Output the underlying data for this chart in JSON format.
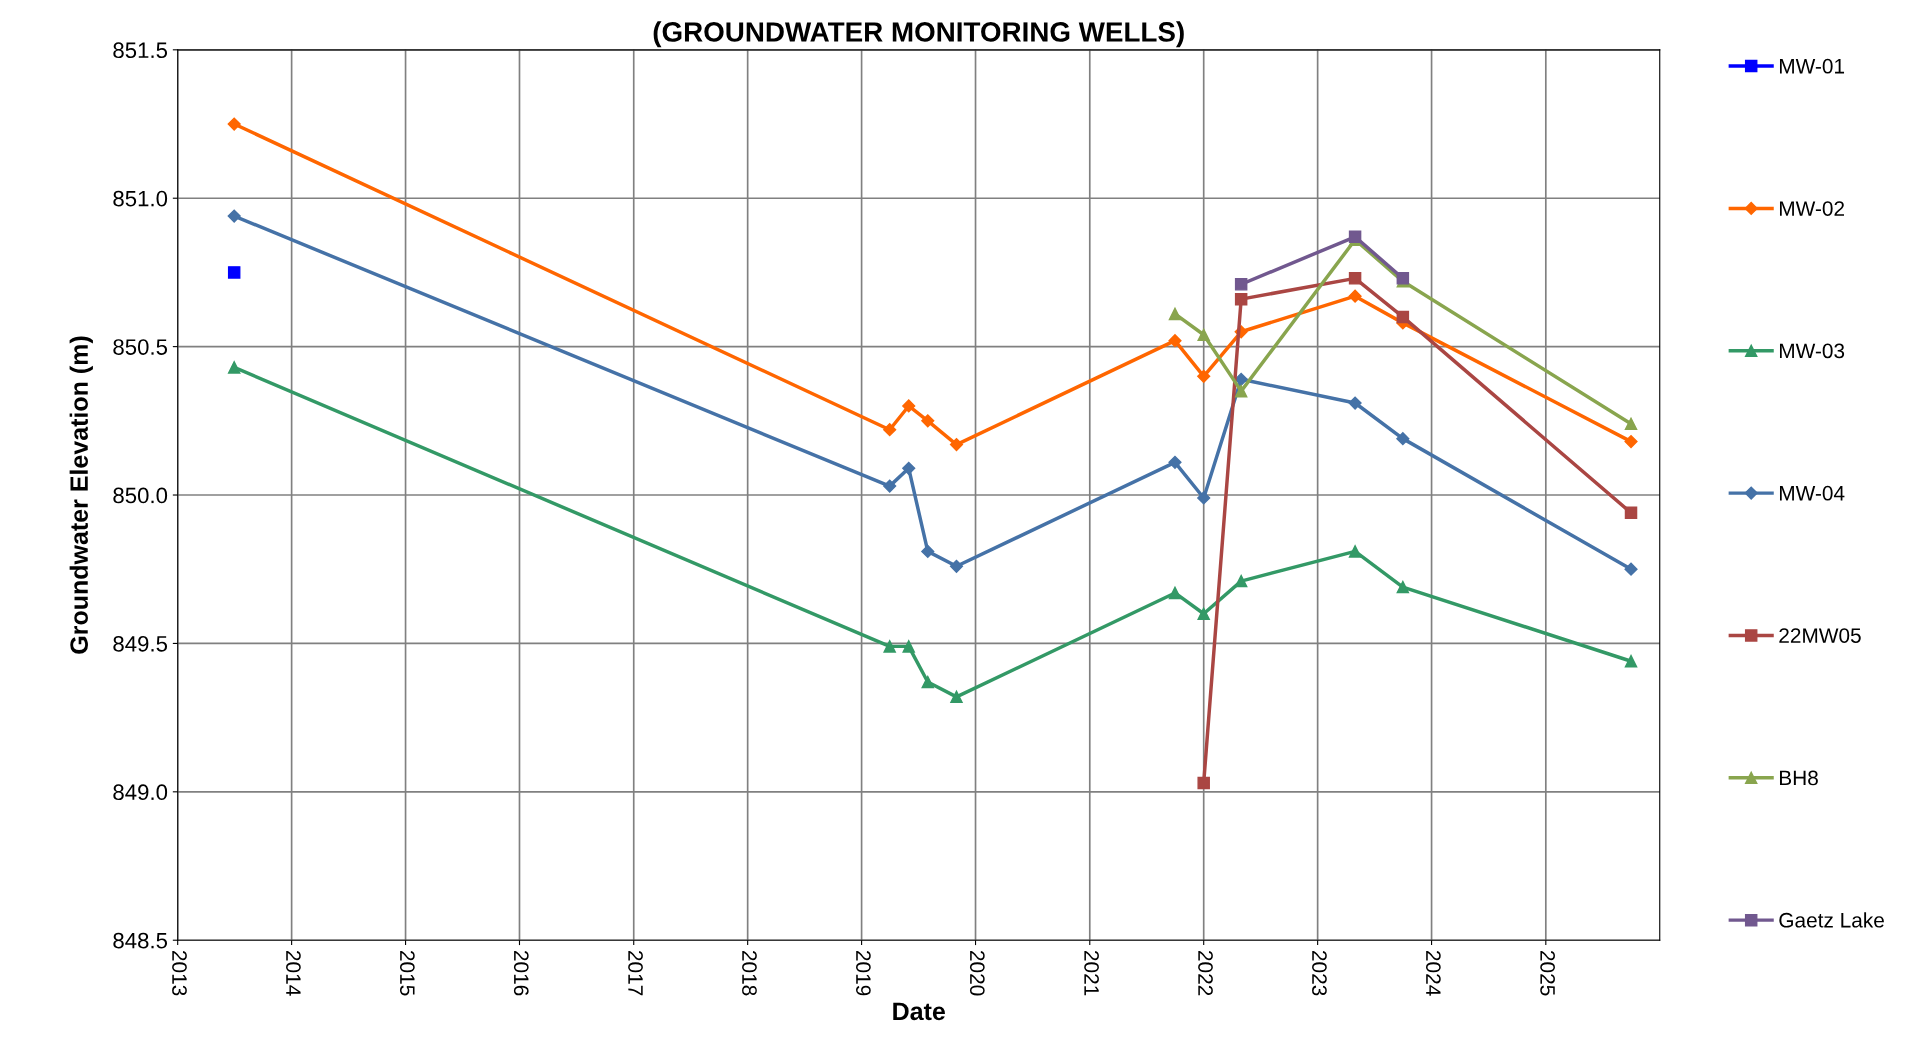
{
  "chart_data": {
    "type": "line",
    "title": "(GROUNDWATER MONITORING WELLS)",
    "xlabel": "Date",
    "ylabel": "Groundwater Elevation (m)",
    "xlim": [
      "2013",
      "2026"
    ],
    "xticks": [
      "2013",
      "2014",
      "2015",
      "2016",
      "2017",
      "2018",
      "2019",
      "2020",
      "2021",
      "2022",
      "2023",
      "2024",
      "2025"
    ],
    "ylim": [
      848.5,
      851.5
    ],
    "yticks": [
      848.5,
      {
        "value": 849,
        "label": "849.0"
      },
      849.5,
      {
        "value": 850,
        "label": "850.0"
      },
      850.5,
      {
        "value": 851,
        "label": "851.0"
      },
      851.5
    ],
    "grid": true,
    "legend": "right",
    "line_style": "solid",
    "series": [
      {
        "name": "MW-01",
        "color": "#0000ff",
        "marker": "square",
        "x": [
          "2013-07"
        ],
        "values": [
          850.75
        ]
      },
      {
        "name": "MW-02",
        "color": "#ff6600",
        "marker": "diamond",
        "x": [
          "2013-07",
          "2019-04",
          "2019-06",
          "2019-08",
          "2019-11",
          "2021-10",
          "2022-01",
          "2022-05",
          "2023-05",
          "2023-10",
          "2025-10"
        ],
        "values": [
          851.25,
          850.22,
          850.3,
          850.25,
          850.17,
          850.52,
          850.4,
          850.55,
          850.67,
          850.58,
          850.18
        ]
      },
      {
        "name": "MW-03",
        "color": "#339966",
        "marker": "triangle",
        "x": [
          "2013-07",
          "2019-04",
          "2019-06",
          "2019-08",
          "2019-11",
          "2021-10",
          "2022-01",
          "2022-05",
          "2023-05",
          "2023-10",
          "2025-10"
        ],
        "values": [
          850.43,
          849.49,
          849.49,
          849.37,
          849.32,
          849.67,
          849.6,
          849.71,
          849.81,
          849.69,
          849.44
        ]
      },
      {
        "name": "MW-04",
        "color": "#4572a7",
        "marker": "diamond",
        "x": [
          "2013-07",
          "2019-04",
          "2019-06",
          "2019-08",
          "2019-11",
          "2021-10",
          "2022-01",
          "2022-05",
          "2023-05",
          "2023-10",
          "2025-10"
        ],
        "values": [
          850.94,
          850.03,
          850.09,
          849.81,
          849.76,
          850.11,
          849.99,
          850.39,
          850.31,
          850.19,
          849.75
        ]
      },
      {
        "name": "22MW05",
        "color": "#aa4643",
        "marker": "square",
        "x": [
          "2022-01",
          "2022-05",
          "2023-05",
          "2023-10",
          "2025-10"
        ],
        "values": [
          849.03,
          850.66,
          850.73,
          850.6,
          849.94
        ]
      },
      {
        "name": "BH8",
        "color": "#89a54e",
        "marker": "triangle",
        "x": [
          "2021-10",
          "2022-01",
          "2022-05",
          "2023-05",
          "2023-10",
          "2025-10"
        ],
        "values": [
          850.61,
          850.54,
          850.35,
          850.86,
          850.72,
          850.24
        ]
      },
      {
        "name": "Gaetz Lake",
        "color": "#71588f",
        "marker": "square",
        "x": [
          "2022-05",
          "2023-05",
          "2023-10"
        ],
        "values": [
          850.71,
          850.87,
          850.73
        ]
      }
    ]
  }
}
